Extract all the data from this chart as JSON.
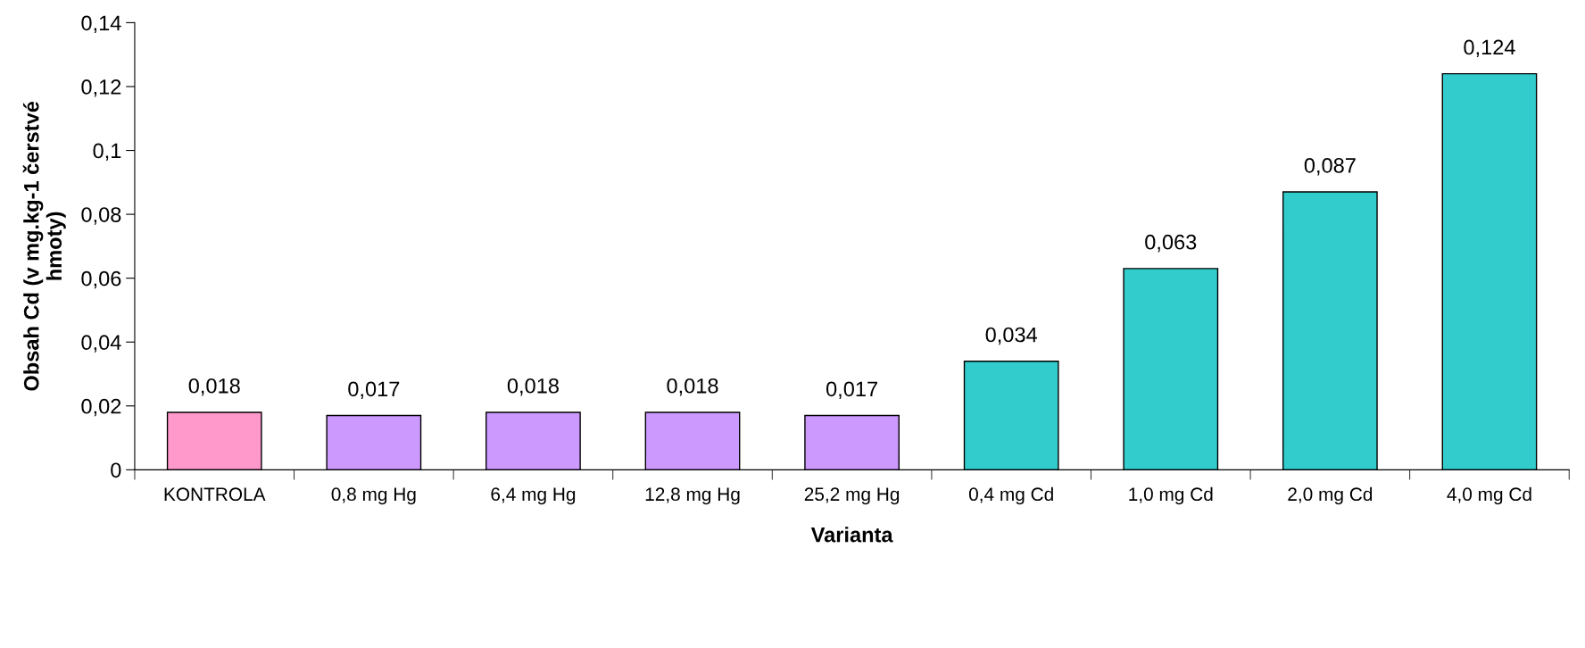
{
  "chart_data": {
    "type": "bar",
    "xlabel": "Varianta",
    "ylabel": "Obsah Cd (v mg.kg-1 čerstvé\nhmoty)",
    "categories": [
      "KONTROLA",
      "0,8 mg Hg",
      "6,4 mg Hg",
      "12,8 mg Hg",
      "25,2 mg Hg",
      "0,4 mg Cd",
      "1,0 mg Cd",
      "2,0 mg Cd",
      "4,0 mg Cd"
    ],
    "values": [
      0.018,
      0.017,
      0.018,
      0.018,
      0.017,
      0.034,
      0.063,
      0.087,
      0.124
    ],
    "value_labels": [
      "0,018",
      "0,017",
      "0,018",
      "0,018",
      "0,017",
      "0,034",
      "0,063",
      "0,087",
      "0,124"
    ],
    "colors": [
      "#ff99cc",
      "#cc99ff",
      "#cc99ff",
      "#cc99ff",
      "#cc99ff",
      "#33cccc",
      "#33cccc",
      "#33cccc",
      "#33cccc"
    ],
    "ylim": [
      0,
      0.14
    ],
    "yticks": [
      0,
      {
        "value": 0.02,
        "label": "0,02"
      },
      {
        "value": 0.04,
        "label": "0,04"
      },
      {
        "value": 0.06,
        "label": "0,06"
      },
      {
        "value": 0.08,
        "label": "0,08"
      },
      {
        "value": 0.1,
        "label": "0,1"
      },
      {
        "value": 0.12,
        "label": "0,12"
      },
      {
        "value": 0.14,
        "label": "0,14"
      }
    ],
    "grid": false,
    "legend": false
  }
}
